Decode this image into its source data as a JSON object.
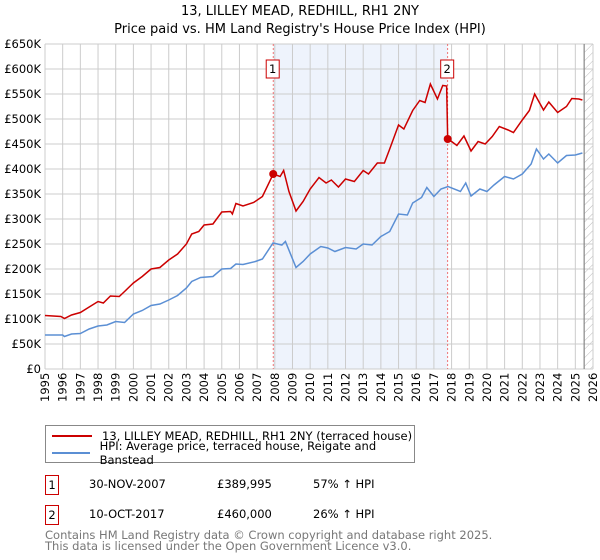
{
  "chart_data": {
    "type": "line",
    "title": "13, LILLEY MEAD, REDHILL, RH1 2NY",
    "subtitle": "Price paid vs. HM Land Registry's House Price Index (HPI)",
    "xlim": [
      1995,
      2026
    ],
    "ylim": [
      0,
      650000
    ],
    "x_ticks": [
      "1995",
      "1996",
      "1997",
      "1998",
      "1999",
      "2000",
      "2001",
      "2002",
      "2003",
      "2004",
      "2005",
      "2006",
      "2007",
      "2008",
      "2009",
      "2010",
      "2011",
      "2012",
      "2013",
      "2014",
      "2015",
      "2016",
      "2017",
      "2018",
      "2019",
      "2020",
      "2021",
      "2022",
      "2023",
      "2024",
      "2025",
      "2026"
    ],
    "y_ticks": [
      {
        "v": 0,
        "l": "£0"
      },
      {
        "v": 50000,
        "l": "£50K"
      },
      {
        "v": 100000,
        "l": "£100K"
      },
      {
        "v": 150000,
        "l": "£150K"
      },
      {
        "v": 200000,
        "l": "£200K"
      },
      {
        "v": 250000,
        "l": "£250K"
      },
      {
        "v": 300000,
        "l": "£300K"
      },
      {
        "v": 350000,
        "l": "£350K"
      },
      {
        "v": 400000,
        "l": "£400K"
      },
      {
        "v": 450000,
        "l": "£450K"
      },
      {
        "v": 500000,
        "l": "£500K"
      },
      {
        "v": 550000,
        "l": "£550K"
      },
      {
        "v": 600000,
        "l": "£600K"
      },
      {
        "v": 650000,
        "l": "£650K"
      }
    ],
    "grid": true,
    "shaded_range": [
      2007.91,
      2017.78
    ],
    "hatched_from": 2025.5,
    "series": [
      {
        "name": "13, LILLEY MEAD, REDHILL, RH1 2NY (terraced house)",
        "color": "#cc0000",
        "points": [
          [
            1995,
            107
          ],
          [
            1995.9,
            105
          ],
          [
            1996.1,
            101
          ],
          [
            1996.5,
            108
          ],
          [
            1997,
            113
          ],
          [
            1997.5,
            124
          ],
          [
            1998,
            135
          ],
          [
            1998.3,
            132
          ],
          [
            1998.7,
            146
          ],
          [
            1999.2,
            145
          ],
          [
            1999.5,
            155
          ],
          [
            2000,
            172
          ],
          [
            2000.5,
            185
          ],
          [
            2001,
            200
          ],
          [
            2001.5,
            203
          ],
          [
            2002,
            218
          ],
          [
            2002.5,
            230
          ],
          [
            2003,
            250
          ],
          [
            2003.3,
            270
          ],
          [
            2003.7,
            275
          ],
          [
            2004,
            288
          ],
          [
            2004.5,
            290
          ],
          [
            2005,
            314
          ],
          [
            2005.5,
            315
          ],
          [
            2005.6,
            310
          ],
          [
            2005.8,
            331
          ],
          [
            2006.2,
            326
          ],
          [
            2006.8,
            333
          ],
          [
            2007.3,
            345
          ],
          [
            2007.91,
            390
          ],
          [
            2008.3,
            385
          ],
          [
            2008.5,
            397
          ],
          [
            2008.8,
            355
          ],
          [
            2009.2,
            316
          ],
          [
            2009.6,
            335
          ],
          [
            2010,
            360
          ],
          [
            2010.5,
            383
          ],
          [
            2010.9,
            372
          ],
          [
            2011.2,
            378
          ],
          [
            2011.6,
            364
          ],
          [
            2012,
            380
          ],
          [
            2012.5,
            375
          ],
          [
            2013,
            397
          ],
          [
            2013.3,
            390
          ],
          [
            2013.8,
            412
          ],
          [
            2014.2,
            412
          ],
          [
            2014.5,
            440
          ],
          [
            2015,
            488
          ],
          [
            2015.3,
            480
          ],
          [
            2015.8,
            517
          ],
          [
            2016.2,
            537
          ],
          [
            2016.5,
            533
          ],
          [
            2016.8,
            570
          ],
          [
            2017.2,
            540
          ],
          [
            2017.5,
            567
          ],
          [
            2017.72,
            566
          ],
          [
            2017.78,
            460
          ],
          [
            2018,
            455
          ],
          [
            2018.3,
            447
          ],
          [
            2018.7,
            466
          ],
          [
            2019.1,
            436
          ],
          [
            2019.5,
            455
          ],
          [
            2019.9,
            450
          ],
          [
            2020.3,
            465
          ],
          [
            2020.7,
            485
          ],
          [
            2021.2,
            478
          ],
          [
            2021.5,
            473
          ],
          [
            2022,
            498
          ],
          [
            2022.4,
            517
          ],
          [
            2022.7,
            550
          ],
          [
            2023.2,
            518
          ],
          [
            2023.5,
            534
          ],
          [
            2024,
            513
          ],
          [
            2024.5,
            525
          ],
          [
            2024.8,
            541
          ],
          [
            2025.2,
            540
          ],
          [
            2025.4,
            538
          ]
        ]
      },
      {
        "name": "HPI: Average price, terraced house, Reigate and Banstead",
        "color": "#5b8fd4",
        "points": [
          [
            1995,
            68
          ],
          [
            1996,
            68
          ],
          [
            1996.1,
            65
          ],
          [
            1996.5,
            70
          ],
          [
            1997,
            71
          ],
          [
            1997.5,
            80
          ],
          [
            1998,
            86
          ],
          [
            1998.5,
            88
          ],
          [
            1999,
            95
          ],
          [
            1999.5,
            93
          ],
          [
            2000,
            110
          ],
          [
            2000.5,
            117
          ],
          [
            2001,
            127
          ],
          [
            2001.5,
            130
          ],
          [
            2002,
            138
          ],
          [
            2002.5,
            147
          ],
          [
            2003,
            162
          ],
          [
            2003.3,
            175
          ],
          [
            2003.8,
            183
          ],
          [
            2004.5,
            185
          ],
          [
            2005,
            200
          ],
          [
            2005.5,
            201
          ],
          [
            2005.8,
            210
          ],
          [
            2006.2,
            209
          ],
          [
            2006.9,
            215
          ],
          [
            2007.3,
            220
          ],
          [
            2007.9,
            252
          ],
          [
            2008.4,
            248
          ],
          [
            2008.6,
            255
          ],
          [
            2009.2,
            203
          ],
          [
            2009.6,
            215
          ],
          [
            2010,
            230
          ],
          [
            2010.6,
            245
          ],
          [
            2011,
            242
          ],
          [
            2011.4,
            235
          ],
          [
            2012,
            243
          ],
          [
            2012.6,
            240
          ],
          [
            2013,
            250
          ],
          [
            2013.5,
            248
          ],
          [
            2014,
            265
          ],
          [
            2014.5,
            275
          ],
          [
            2015,
            310
          ],
          [
            2015.5,
            308
          ],
          [
            2015.8,
            332
          ],
          [
            2016.3,
            343
          ],
          [
            2016.6,
            363
          ],
          [
            2017,
            345
          ],
          [
            2017.4,
            360
          ],
          [
            2017.8,
            365
          ],
          [
            2018.5,
            355
          ],
          [
            2018.8,
            372
          ],
          [
            2019.1,
            346
          ],
          [
            2019.6,
            360
          ],
          [
            2020,
            355
          ],
          [
            2020.4,
            368
          ],
          [
            2021,
            385
          ],
          [
            2021.5,
            380
          ],
          [
            2022,
            390
          ],
          [
            2022.5,
            410
          ],
          [
            2022.8,
            440
          ],
          [
            2023.2,
            420
          ],
          [
            2023.5,
            430
          ],
          [
            2024,
            412
          ],
          [
            2024.5,
            427
          ],
          [
            2025,
            428
          ],
          [
            2025.4,
            432
          ]
        ]
      }
    ],
    "markers": [
      {
        "label": "1",
        "x": 2007.91,
        "y": 389995
      },
      {
        "label": "2",
        "x": 2017.78,
        "y": 460000
      }
    ]
  },
  "legend": {
    "red": "13, LILLEY MEAD, REDHILL, RH1 2NY (terraced house)",
    "blue": "HPI: Average price, terraced house, Reigate and Banstead"
  },
  "transactions": [
    {
      "num": "1",
      "date": "30-NOV-2007",
      "price": "£389,995",
      "hpi": "57% ↑ HPI"
    },
    {
      "num": "2",
      "date": "10-OCT-2017",
      "price": "£460,000",
      "hpi": "26% ↑ HPI"
    }
  ],
  "footer": {
    "line1": "Contains HM Land Registry data © Crown copyright and database right 2025.",
    "line2": "This data is licensed under the Open Government Licence v3.0."
  }
}
